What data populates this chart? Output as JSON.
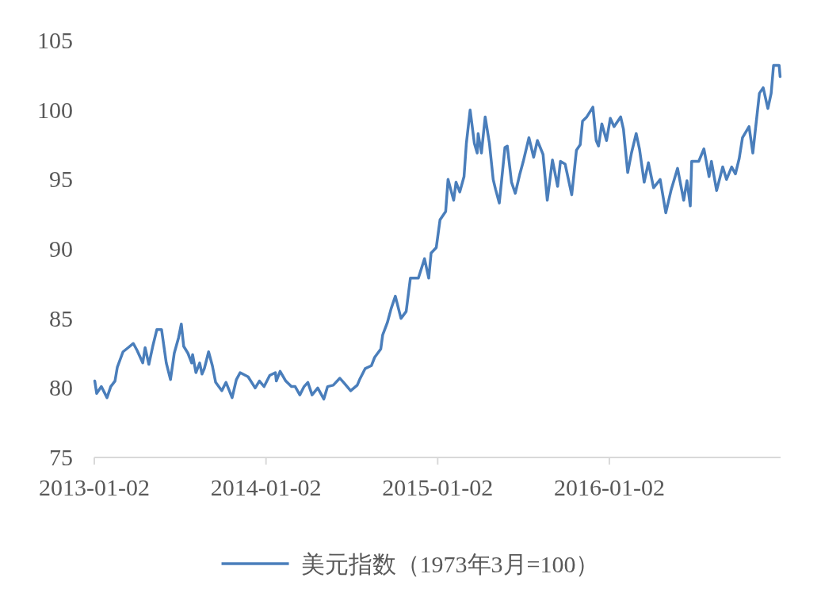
{
  "chart_data": {
    "type": "line",
    "x": [
      "2013-01-03",
      "2013-01-07",
      "2013-01-17",
      "2013-01-29",
      "2013-02-06",
      "2013-02-15",
      "2013-02-20",
      "2013-03-04",
      "2013-03-15",
      "2013-03-26",
      "2013-04-03",
      "2013-04-15",
      "2013-04-20",
      "2013-04-28",
      "2013-05-07",
      "2013-05-15",
      "2013-05-25",
      "2013-06-04",
      "2013-06-13",
      "2013-06-21",
      "2013-06-30",
      "2013-07-06",
      "2013-07-11",
      "2013-07-20",
      "2013-07-28",
      "2013-07-30",
      "2013-08-06",
      "2013-08-14",
      "2013-08-19",
      "2013-08-24",
      "2013-09-02",
      "2013-09-10",
      "2013-09-17",
      "2013-09-30",
      "2013-10-09",
      "2013-10-22",
      "2013-10-31",
      "2013-11-08",
      "2013-11-25",
      "2013-12-10",
      "2013-12-19",
      "2013-12-29",
      "2014-01-10",
      "2014-01-22",
      "2014-01-24",
      "2014-02-01",
      "2014-02-13",
      "2014-02-25",
      "2014-03-05",
      "2014-03-15",
      "2014-03-24",
      "2014-04-01",
      "2014-04-10",
      "2014-04-22",
      "2014-05-05",
      "2014-05-13",
      "2014-05-25",
      "2014-06-08",
      "2014-06-16",
      "2014-07-01",
      "2014-07-15",
      "2014-07-20",
      "2014-08-01",
      "2014-08-14",
      "2014-08-21",
      "2014-09-03",
      "2014-09-07",
      "2014-09-17",
      "2014-09-25",
      "2014-10-04",
      "2014-10-16",
      "2014-10-27",
      "2014-11-05",
      "2014-11-22",
      "2014-12-05",
      "2014-12-14",
      "2014-12-19",
      "2014-12-30",
      "2015-01-07",
      "2015-01-19",
      "2015-01-24",
      "2015-02-05",
      "2015-02-10",
      "2015-02-18",
      "2015-02-27",
      "2015-03-04",
      "2015-03-12",
      "2015-03-21",
      "2015-03-27",
      "2015-03-29",
      "2015-04-05",
      "2015-04-13",
      "2015-04-22",
      "2015-04-30",
      "2015-05-05",
      "2015-05-13",
      "2015-05-25",
      "2015-05-30",
      "2015-06-08",
      "2015-06-16",
      "2015-06-25",
      "2015-07-03",
      "2015-07-15",
      "2015-07-25",
      "2015-08-02",
      "2015-08-14",
      "2015-08-23",
      "2015-09-03",
      "2015-09-14",
      "2015-09-20",
      "2015-09-30",
      "2015-10-14",
      "2015-10-24",
      "2015-11-01",
      "2015-11-06",
      "2015-11-15",
      "2015-11-28",
      "2015-12-05",
      "2015-12-10",
      "2015-12-17",
      "2015-12-27",
      "2016-01-04",
      "2016-01-12",
      "2016-01-26",
      "2016-02-01",
      "2016-02-10",
      "2016-02-18",
      "2016-02-28",
      "2016-03-06",
      "2016-03-16",
      "2016-03-25",
      "2016-04-05",
      "2016-04-19",
      "2016-05-01",
      "2016-05-12",
      "2016-05-26",
      "2016-06-08",
      "2016-06-15",
      "2016-06-22",
      "2016-06-25",
      "2016-07-10",
      "2016-07-21",
      "2016-08-01",
      "2016-08-06",
      "2016-08-17",
      "2016-08-30",
      "2016-09-07",
      "2016-09-18",
      "2016-09-26",
      "2016-10-04",
      "2016-10-11",
      "2016-10-25",
      "2016-11-02",
      "2016-11-16",
      "2016-11-24",
      "2016-12-04",
      "2016-12-11",
      "2016-12-16",
      "2016-12-28",
      "2016-12-30"
    ],
    "series": [
      {
        "name": "美元指数（1973年3月=100）",
        "color": "#4a7ebb",
        "values": [
          80.5,
          79.6,
          80.1,
          79.3,
          80.1,
          80.5,
          81.5,
          82.6,
          82.9,
          83.2,
          82.7,
          81.8,
          82.9,
          81.7,
          83.1,
          84.2,
          84.2,
          81.8,
          80.6,
          82.5,
          83.6,
          84.6,
          83.0,
          82.5,
          81.8,
          82.4,
          81.1,
          81.8,
          81.0,
          81.4,
          82.6,
          81.6,
          80.4,
          79.8,
          80.4,
          79.3,
          80.6,
          81.1,
          80.8,
          80.0,
          80.5,
          80.1,
          80.9,
          81.1,
          80.5,
          81.2,
          80.5,
          80.1,
          80.1,
          79.5,
          80.1,
          80.4,
          79.5,
          80.0,
          79.2,
          80.1,
          80.2,
          80.7,
          80.4,
          79.8,
          80.2,
          80.6,
          81.4,
          81.6,
          82.2,
          82.8,
          83.8,
          84.7,
          85.7,
          86.6,
          85.0,
          85.5,
          87.9,
          87.9,
          89.3,
          87.9,
          89.7,
          90.1,
          92.1,
          92.7,
          95.0,
          93.5,
          94.8,
          94.1,
          95.2,
          97.6,
          100.0,
          97.6,
          96.9,
          98.3,
          96.9,
          99.5,
          97.6,
          95.0,
          94.3,
          93.3,
          97.3,
          97.4,
          94.8,
          94.0,
          95.3,
          96.3,
          98.0,
          96.6,
          97.8,
          96.8,
          93.5,
          96.4,
          94.5,
          96.3,
          96.1,
          93.9,
          97.1,
          97.5,
          99.2,
          99.5,
          100.2,
          97.8,
          97.4,
          99.0,
          97.8,
          99.4,
          98.8,
          99.5,
          98.6,
          95.5,
          96.9,
          98.3,
          97.2,
          94.8,
          96.2,
          94.4,
          95.0,
          92.6,
          94.2,
          95.8,
          93.5,
          94.9,
          93.1,
          96.3,
          96.3,
          97.2,
          95.2,
          96.3,
          94.2,
          95.9,
          95.0,
          95.9,
          95.4,
          96.5,
          98.0,
          98.8,
          96.9,
          101.2,
          101.6,
          100.1,
          101.2,
          103.2,
          103.2,
          102.4
        ]
      }
    ],
    "xlim": [
      "2013-01-02",
      "2016-12-31"
    ],
    "xticks": [
      "2013-01-02",
      "2014-01-02",
      "2015-01-02",
      "2016-01-02"
    ],
    "ylim": [
      75,
      105
    ],
    "yticks": [
      75,
      80,
      85,
      90,
      95,
      100,
      105
    ],
    "legend": "bottom",
    "grid": false
  }
}
